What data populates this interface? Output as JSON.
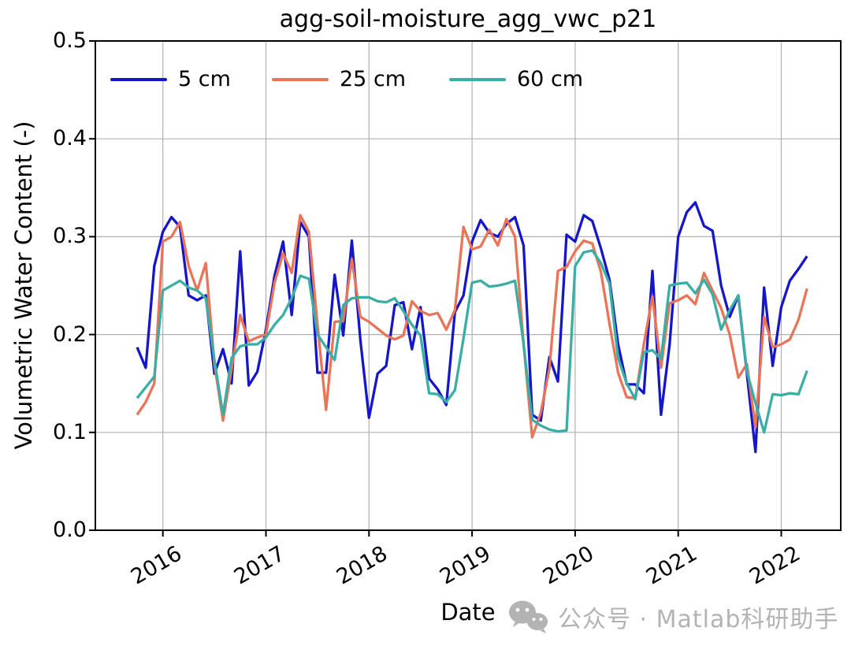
{
  "title": "agg-soil-moisture_agg_vwc_p21",
  "watermark": {
    "icon": "wechat-icon",
    "text": "公众号 · Matlab科研助手"
  },
  "chart_data": {
    "type": "line",
    "title": "agg-soil-moisture_agg_vwc_p21",
    "xlabel": "Date",
    "ylabel": "Volumetric Water Content (-)",
    "ylim": [
      0.0,
      0.5
    ],
    "ytick_labels": [
      "0.0",
      "0.1",
      "0.2",
      "0.3",
      "0.4",
      "0.5"
    ],
    "year_ticks": [
      "2016",
      "2017",
      "2018",
      "2019",
      "2020",
      "2021",
      "2022"
    ],
    "grid": true,
    "grid_color": "#b0b0b0",
    "legend_position": "upper-left-horizontal-no-frame",
    "x_months": [
      "2015-10",
      "2015-11",
      "2015-12",
      "2016-01",
      "2016-02",
      "2016-03",
      "2016-04",
      "2016-05",
      "2016-06",
      "2016-07",
      "2016-08",
      "2016-09",
      "2016-10",
      "2016-11",
      "2016-12",
      "2017-01",
      "2017-02",
      "2017-03",
      "2017-04",
      "2017-05",
      "2017-06",
      "2017-07",
      "2017-08",
      "2017-09",
      "2017-10",
      "2017-11",
      "2017-12",
      "2018-01",
      "2018-02",
      "2018-03",
      "2018-04",
      "2018-05",
      "2018-06",
      "2018-07",
      "2018-08",
      "2018-09",
      "2018-10",
      "2018-11",
      "2018-12",
      "2019-01",
      "2019-02",
      "2019-03",
      "2019-04",
      "2019-05",
      "2019-06",
      "2019-07",
      "2019-08",
      "2019-09",
      "2019-10",
      "2019-11",
      "2019-12",
      "2020-01",
      "2020-02",
      "2020-03",
      "2020-04",
      "2020-05",
      "2020-06",
      "2020-07",
      "2020-08",
      "2020-09",
      "2020-10",
      "2020-11",
      "2020-12",
      "2021-01",
      "2021-02",
      "2021-03",
      "2021-04",
      "2021-05",
      "2021-06",
      "2021-07",
      "2021-08",
      "2021-09",
      "2021-10",
      "2021-11",
      "2021-12",
      "2022-01",
      "2022-02",
      "2022-03",
      "2022-04"
    ],
    "series": [
      {
        "name": "5 cm",
        "color": "#1516c9",
        "values": [
          0.187,
          0.166,
          0.27,
          0.305,
          0.32,
          0.31,
          0.24,
          0.235,
          0.24,
          0.16,
          0.185,
          0.15,
          0.285,
          0.148,
          0.162,
          0.205,
          0.26,
          0.295,
          0.22,
          0.315,
          0.3,
          0.161,
          0.161,
          0.261,
          0.199,
          0.296,
          0.194,
          0.115,
          0.16,
          0.168,
          0.23,
          0.233,
          0.185,
          0.228,
          0.155,
          0.144,
          0.128,
          0.223,
          0.24,
          0.295,
          0.317,
          0.304,
          0.3,
          0.313,
          0.32,
          0.291,
          0.118,
          0.112,
          0.177,
          0.152,
          0.302,
          0.295,
          0.322,
          0.316,
          0.288,
          0.256,
          0.19,
          0.149,
          0.149,
          0.14,
          0.265,
          0.118,
          0.19,
          0.3,
          0.325,
          0.335,
          0.311,
          0.306,
          0.25,
          0.218,
          0.24,
          0.16,
          0.08,
          0.248,
          0.168,
          0.228,
          0.255,
          0.267,
          0.28
        ]
      },
      {
        "name": "25 cm",
        "color": "#e97457",
        "values": [
          0.118,
          0.131,
          0.15,
          0.295,
          0.3,
          0.315,
          0.27,
          0.245,
          0.273,
          0.17,
          0.112,
          0.165,
          0.22,
          0.193,
          0.197,
          0.2,
          0.253,
          0.283,
          0.263,
          0.322,
          0.305,
          0.21,
          0.123,
          0.213,
          0.214,
          0.277,
          0.218,
          0.213,
          0.206,
          0.199,
          0.195,
          0.199,
          0.234,
          0.224,
          0.22,
          0.222,
          0.205,
          0.225,
          0.31,
          0.287,
          0.29,
          0.307,
          0.291,
          0.318,
          0.3,
          0.19,
          0.095,
          0.12,
          0.165,
          0.265,
          0.269,
          0.285,
          0.296,
          0.293,
          0.264,
          0.211,
          0.161,
          0.136,
          0.135,
          0.19,
          0.239,
          0.166,
          0.232,
          0.235,
          0.24,
          0.231,
          0.263,
          0.245,
          0.227,
          0.2,
          0.156,
          0.17,
          0.105,
          0.218,
          0.187,
          0.19,
          0.195,
          0.215,
          0.247
        ]
      },
      {
        "name": "60 cm",
        "color": "#3aaea4",
        "values": [
          0.135,
          0.146,
          0.157,
          0.245,
          0.25,
          0.255,
          0.248,
          0.245,
          0.237,
          0.174,
          0.118,
          0.176,
          0.188,
          0.19,
          0.19,
          0.197,
          0.21,
          0.22,
          0.237,
          0.26,
          0.257,
          0.2,
          0.187,
          0.174,
          0.23,
          0.237,
          0.238,
          0.238,
          0.234,
          0.233,
          0.237,
          0.224,
          0.21,
          0.199,
          0.14,
          0.139,
          0.131,
          0.143,
          0.196,
          0.253,
          0.255,
          0.249,
          0.25,
          0.252,
          0.255,
          0.19,
          0.113,
          0.107,
          0.103,
          0.101,
          0.102,
          0.27,
          0.284,
          0.286,
          0.273,
          0.252,
          0.176,
          0.15,
          0.134,
          0.182,
          0.184,
          0.175,
          0.25,
          0.252,
          0.253,
          0.242,
          0.256,
          0.241,
          0.205,
          0.225,
          0.24,
          0.162,
          0.13,
          0.1,
          0.139,
          0.138,
          0.14,
          0.139,
          0.163
        ]
      }
    ]
  }
}
